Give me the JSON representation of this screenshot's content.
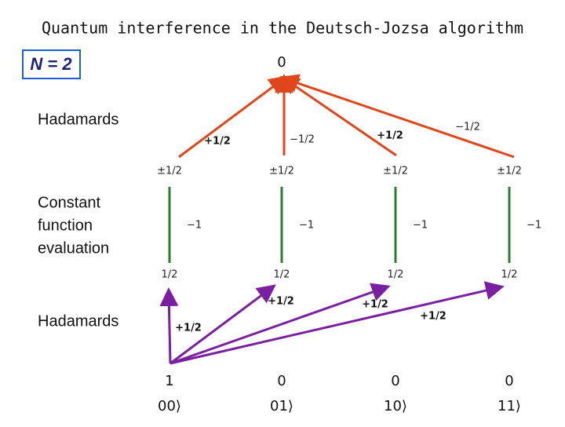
{
  "title": "Quantum interference in the Deutsch-Jozsa algorithm",
  "badge": "N = 2",
  "stages": [
    [
      "Hadamards"
    ],
    [
      "Constant",
      "function",
      "evaluation"
    ],
    [
      "Hadamards"
    ]
  ],
  "top_node": "0",
  "layer1_edges": [
    "+1/2",
    "−1/2",
    "+1/2",
    "−1/2"
  ],
  "layer1_values": [
    "±1/2",
    "±1/2",
    "±1/2",
    "±1/2"
  ],
  "oracle_edges": [
    "−1",
    "−1",
    "−1",
    "−1"
  ],
  "layer2_values": [
    "1/2",
    "1/2",
    "1/2",
    "1/2"
  ],
  "layer3_edges": [
    "+1/2",
    "+1/2",
    "+1/2",
    "+1/2"
  ],
  "outputs": [
    "1",
    "0",
    "0",
    "0"
  ],
  "kets": [
    "00⟩",
    "01⟩",
    "10⟩",
    "11⟩"
  ]
}
